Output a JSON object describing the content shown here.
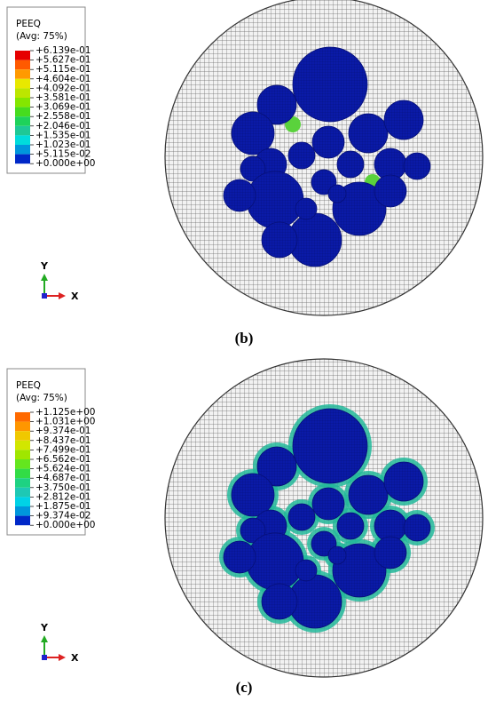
{
  "panels": [
    {
      "legend": {
        "title": "PEEQ",
        "subtitle": "(Avg: 75%)",
        "labels": [
          "+6.139e-01",
          "+5.627e-01",
          "+5.115e-01",
          "+4.604e-01",
          "+4.092e-01",
          "+3.581e-01",
          "+3.069e-01",
          "+2.558e-01",
          "+2.046e-01",
          "+1.535e-01",
          "+1.023e-01",
          "+5.115e-02",
          "+0.000e+00"
        ]
      },
      "axes": {
        "y": "Y",
        "x": "X"
      },
      "caption": "(b)"
    },
    {
      "legend": {
        "title": "PEEQ",
        "subtitle": "(Avg: 75%)",
        "labels": [
          "+1.125e+00",
          "+1.031e+00",
          "+9.374e-01",
          "+8.437e-01",
          "+7.499e-01",
          "+6.562e-01",
          "+5.624e-01",
          "+4.687e-01",
          "+3.750e-01",
          "+2.812e-01",
          "+1.875e-01",
          "+9.374e-02",
          "+0.000e+00"
        ]
      },
      "axes": {
        "y": "Y",
        "x": "X"
      },
      "caption": "(c)"
    }
  ]
}
